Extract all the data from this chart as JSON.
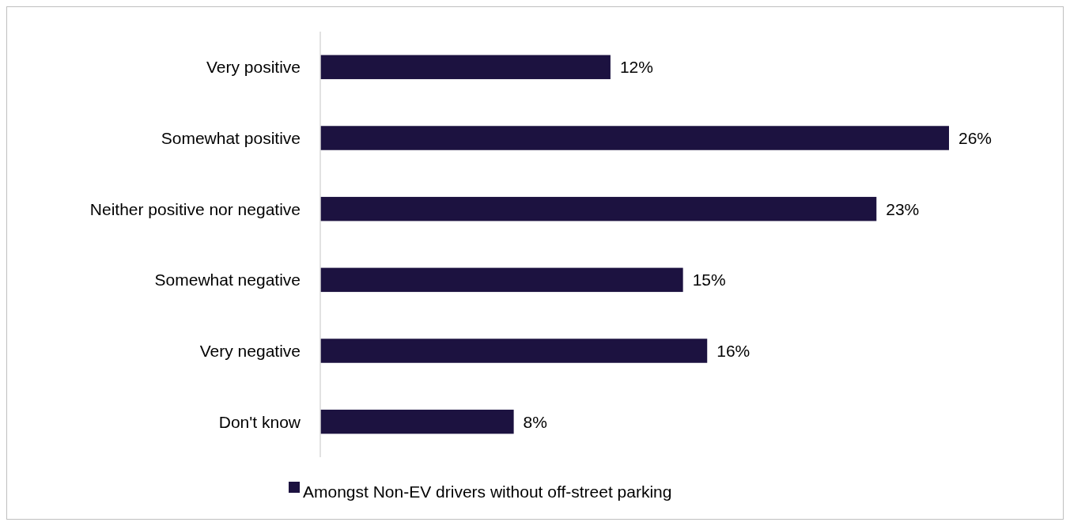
{
  "chart_data": {
    "type": "bar",
    "orientation": "horizontal",
    "categories": [
      "Very positive",
      "Somewhat positive",
      "Neither positive nor negative",
      "Somewhat negative",
      "Very negative",
      "Don't know"
    ],
    "series": [
      {
        "name": "Amongst Non-EV drivers without off-street parking",
        "color": "#1c1240",
        "values": [
          12,
          26,
          23,
          15,
          16,
          8
        ],
        "value_labels": [
          "12%",
          "26%",
          "23%",
          "15%",
          "16%",
          "8%"
        ]
      }
    ],
    "legend": "bottom"
  }
}
